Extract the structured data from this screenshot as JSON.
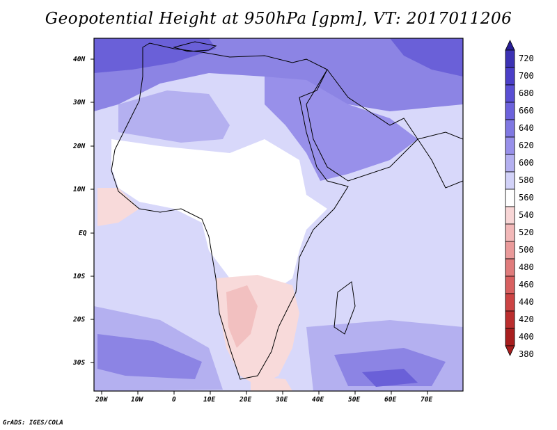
{
  "title": "Geopotential Height at 950hPa [gpm], VT: 2017011206",
  "credit": "GrADS: IGES/COLA",
  "lat_labels": [
    "40N",
    "30N",
    "20N",
    "10N",
    "EQ",
    "10S",
    "20S",
    "30S"
  ],
  "lon_labels": [
    "20W",
    "10W",
    "0",
    "10E",
    "20E",
    "30E",
    "40E",
    "50E",
    "60E",
    "70E"
  ],
  "colorbar": {
    "labels": [
      "720",
      "700",
      "680",
      "660",
      "640",
      "620",
      "600",
      "580",
      "560",
      "540",
      "520",
      "500",
      "480",
      "460",
      "440",
      "420",
      "400",
      "380"
    ],
    "colors": [
      "#281e96",
      "#3c32b4",
      "#4b3fc8",
      "#5a4fd4",
      "#6c62dc",
      "#8078e2",
      "#9890ea",
      "#b4b0f0",
      "#d2d2f8",
      "#ffffff",
      "#f8d6d6",
      "#f2b8b8",
      "#ea9a9a",
      "#e07c7c",
      "#d86060",
      "#cc4444",
      "#bb2e2e",
      "#a81e1e"
    ]
  },
  "field_colors": {
    "ocean_low": "#d8d8fa",
    "ocean_mid": "#b8b4f0",
    "ocean_high": "#8c84e4",
    "ocean_vhigh": "#6a60d8",
    "land_neutral": "#ffffff",
    "land_low": "#f8dada",
    "land_mid": "#f2c0c0"
  }
}
